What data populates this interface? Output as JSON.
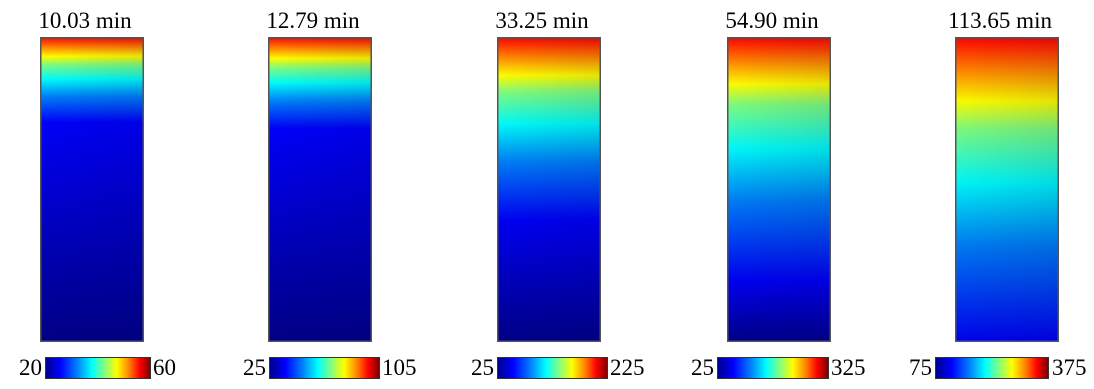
{
  "panels": [
    {
      "title": "10.03 min",
      "colorbar": {
        "min": "20",
        "max": "60"
      },
      "hot_depth": 0.09,
      "warm_depth": 0.28
    },
    {
      "title": "12.79 min",
      "colorbar": {
        "min": "25",
        "max": "105"
      },
      "hot_depth": 0.1,
      "warm_depth": 0.3
    },
    {
      "title": "33.25 min",
      "colorbar": {
        "min": "25",
        "max": "225"
      },
      "hot_depth": 0.18,
      "warm_depth": 0.6
    },
    {
      "title": "54.90 min",
      "colorbar": {
        "min": "25",
        "max": "325"
      },
      "hot_depth": 0.22,
      "warm_depth": 0.8
    },
    {
      "title": "113.65 min",
      "colorbar": {
        "min": "75",
        "max": "375"
      },
      "hot_depth": 0.3,
      "warm_depth": 1.0
    }
  ],
  "colormap": [
    "#00008f",
    "#0000ff",
    "#0080ff",
    "#00ffff",
    "#80ff80",
    "#ffff00",
    "#ff8000",
    "#ff0000",
    "#800000"
  ]
}
